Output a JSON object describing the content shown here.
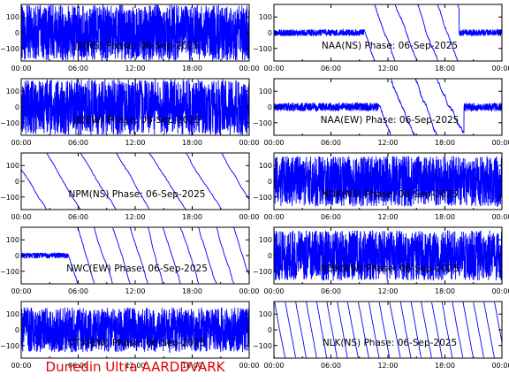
{
  "footer": {
    "text": "Dunedin Ultra AARDDVARK",
    "color": "#dd0000"
  },
  "colors": {
    "trace": "#0000ff",
    "axes": "#000000",
    "background": "#ffffff"
  },
  "chart_data": [
    {
      "type": "line",
      "title": "JJI(NS) Phase: 06-Sep-2025",
      "col": 0,
      "row": 0,
      "xlim": [
        0,
        24
      ],
      "ylim": [
        -180,
        180
      ],
      "x_ticks": [
        "00:00",
        "06:00",
        "12:00",
        "18:00",
        "00:00"
      ],
      "y_ticks": [
        -100,
        0,
        100
      ],
      "y_tick_labels": [
        "−100",
        "0",
        "100"
      ],
      "behavior": "noise",
      "segments": [
        [
          0,
          24
        ]
      ],
      "wraps_per_hour": 0,
      "drift": 0,
      "noise": 1.0
    },
    {
      "type": "line",
      "title": "NAA(NS) Phase: 06-Sep-2025",
      "col": 1,
      "row": 0,
      "xlim": [
        0,
        24
      ],
      "ylim": [
        -180,
        180
      ],
      "x_ticks": [
        "00:00",
        "06:00",
        "12:00",
        "18:00",
        "00:00"
      ],
      "y_ticks": [
        -100,
        0,
        100
      ],
      "y_tick_labels": [
        "−100",
        "0",
        "100"
      ],
      "behavior": "mixed",
      "segments": [
        [
          0,
          9.5
        ],
        [
          19.5,
          24
        ]
      ],
      "wraps_per_hour": 0.45,
      "drift": 0,
      "noise": 0.12
    },
    {
      "type": "line",
      "title": "JJI(EW) Phase: 06-Sep-2025",
      "col": 0,
      "row": 1,
      "xlim": [
        0,
        24
      ],
      "ylim": [
        -180,
        180
      ],
      "x_ticks": [
        "00:00",
        "06:00",
        "12:00",
        "18:00",
        "00:00"
      ],
      "y_ticks": [
        -100,
        0,
        100
      ],
      "y_tick_labels": [
        "−100",
        "0",
        "100"
      ],
      "behavior": "noise",
      "segments": [
        [
          0,
          24
        ]
      ],
      "wraps_per_hour": 0,
      "drift": 0,
      "noise": 1.0
    },
    {
      "type": "line",
      "title": "NAA(EW) Phase: 06-Sep-2025",
      "col": 1,
      "row": 1,
      "xlim": [
        0,
        24
      ],
      "ylim": [
        -180,
        180
      ],
      "x_ticks": [
        "00:00",
        "06:00",
        "12:00",
        "18:00",
        "00:00"
      ],
      "y_ticks": [
        -100,
        0,
        100
      ],
      "y_tick_labels": [
        "−100",
        "0",
        "100"
      ],
      "behavior": "mixed",
      "segments": [
        [
          0,
          11
        ],
        [
          20,
          24
        ]
      ],
      "wraps_per_hour": 0.4,
      "drift": 0,
      "noise": 0.15
    },
    {
      "type": "line",
      "title": "NPM(NS) Phase: 06-Sep-2025",
      "col": 0,
      "row": 2,
      "xlim": [
        0,
        24
      ],
      "ylim": [
        -180,
        180
      ],
      "x_ticks": [
        "00:00",
        "06:00",
        "12:00",
        "18:00",
        "00:00"
      ],
      "y_ticks": [
        -100,
        0,
        100
      ],
      "y_tick_labels": [
        "−100",
        "0",
        "100"
      ],
      "behavior": "sawtooth",
      "segments": [],
      "wraps_per_hour": 0.28,
      "drift": 0,
      "noise": 0.05
    },
    {
      "type": "line",
      "title": "NDK(NS) Phase: 06-Sep-2025",
      "col": 1,
      "row": 2,
      "xlim": [
        0,
        24
      ],
      "ylim": [
        -180,
        180
      ],
      "x_ticks": [
        "00:00",
        "06:00",
        "12:00",
        "18:00",
        "00:00"
      ],
      "y_ticks": [
        -100,
        0,
        100
      ],
      "y_tick_labels": [
        "−100",
        "0",
        "100"
      ],
      "behavior": "noise",
      "segments": [
        [
          0,
          24
        ]
      ],
      "wraps_per_hour": 0,
      "drift": 0,
      "noise": 0.9
    },
    {
      "type": "line",
      "title": "NWC(EW) Phase: 06-Sep-2025",
      "col": 0,
      "row": 3,
      "xlim": [
        0,
        24
      ],
      "ylim": [
        -180,
        180
      ],
      "x_ticks": [
        "00:00",
        "06:00",
        "12:00",
        "18:00",
        "00:00"
      ],
      "y_ticks": [
        -100,
        0,
        100
      ],
      "y_tick_labels": [
        "−100",
        "0",
        "100"
      ],
      "behavior": "mixed",
      "segments": [
        [
          0,
          5
        ]
      ],
      "wraps_per_hour": 0.55,
      "drift": 0,
      "noise": 0.1
    },
    {
      "type": "line",
      "title": "NDK(EW) Phase: 06-Sep-2025",
      "col": 1,
      "row": 3,
      "xlim": [
        0,
        24
      ],
      "ylim": [
        -180,
        180
      ],
      "x_ticks": [
        "00:00",
        "06:00",
        "12:00",
        "18:00",
        "00:00"
      ],
      "y_ticks": [
        -100,
        0,
        100
      ],
      "y_tick_labels": [
        "−100",
        "0",
        "100"
      ],
      "behavior": "noise",
      "segments": [
        [
          0,
          24
        ]
      ],
      "wraps_per_hour": 0,
      "drift": 0,
      "noise": 0.9
    },
    {
      "type": "line",
      "title": "VTX(EW) Phase: 06-Sep-2025",
      "col": 0,
      "row": 4,
      "xlim": [
        0,
        24
      ],
      "ylim": [
        -180,
        180
      ],
      "x_ticks": [
        "00:00",
        "06:00",
        "12:00",
        "18:00",
        "00:00"
      ],
      "y_ticks": [
        -100,
        0,
        100
      ],
      "y_tick_labels": [
        "−100",
        "0",
        "100"
      ],
      "behavior": "noise",
      "segments": [
        [
          0,
          24
        ]
      ],
      "wraps_per_hour": 0,
      "drift": 0,
      "noise": 0.8
    },
    {
      "type": "line",
      "title": "NLK(NS) Phase: 06-Sep-2025",
      "col": 1,
      "row": 4,
      "xlim": [
        0,
        24
      ],
      "ylim": [
        -180,
        180
      ],
      "x_ticks": [
        "00:00",
        "06:00",
        "12:00",
        "18:00",
        "00:00"
      ],
      "y_ticks": [
        -100,
        0,
        100
      ],
      "y_tick_labels": [
        "−100",
        "0",
        "100"
      ],
      "behavior": "sawtooth",
      "segments": [],
      "wraps_per_hour": 0.9,
      "drift": 0,
      "noise": 0.06
    }
  ]
}
